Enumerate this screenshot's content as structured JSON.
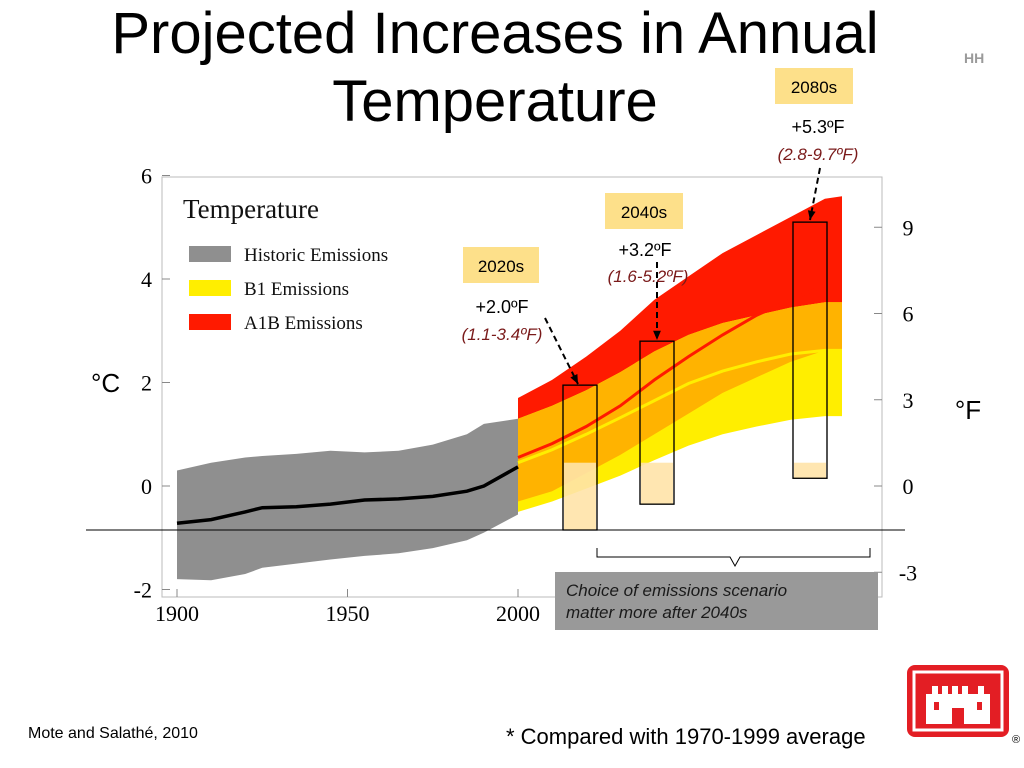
{
  "slide": {
    "title_line1": "Projected Increases in Annual",
    "title_line2": "Temperature",
    "corner_mark": "HH",
    "unit_left": "°C",
    "unit_right": "°F",
    "source": "Mote and Salathé, 2010",
    "footnote": "* Compared with 1970-1999 average",
    "note": [
      "Choice of emissions scenario",
      "matter more after 2040s"
    ],
    "registered": "®"
  },
  "chart_data": {
    "type": "area",
    "title": "Temperature",
    "xlabel": "",
    "ylabel": "°C",
    "y2label": "°F",
    "xlim": [
      1900,
      2100
    ],
    "ylim": [
      -2,
      6
    ],
    "x_ticks": [
      1900,
      1950,
      2000
    ],
    "y_ticks": [
      -2,
      0,
      2,
      4,
      6
    ],
    "y2_ticks": [
      -3,
      0,
      3,
      6,
      9
    ],
    "legend": {
      "placement": "top-left",
      "entries": [
        {
          "name": "Historic Emissions",
          "color": "#8f8f8f"
        },
        {
          "name": "B1 Emissions",
          "color": "#ffee00"
        },
        {
          "name": "A1B Emissions",
          "color": "#ff1a00"
        }
      ]
    },
    "series": [
      {
        "name": "Historic Emissions",
        "color": "#8f8f8f",
        "line_color": "#000000",
        "x": [
          1900,
          1910,
          1920,
          1925,
          1935,
          1945,
          1955,
          1965,
          1975,
          1985,
          1990,
          2000
        ],
        "mean": [
          -0.72,
          -0.65,
          -0.5,
          -0.42,
          -0.4,
          -0.35,
          -0.27,
          -0.25,
          -0.2,
          -0.1,
          0.0,
          0.37
        ],
        "low": [
          -1.8,
          -1.82,
          -1.7,
          -1.58,
          -1.5,
          -1.42,
          -1.35,
          -1.3,
          -1.2,
          -1.05,
          -0.9,
          -0.55
        ],
        "high": [
          0.3,
          0.45,
          0.55,
          0.58,
          0.62,
          0.68,
          0.65,
          0.68,
          0.8,
          1.0,
          1.2,
          1.3
        ]
      },
      {
        "name": "B1 Emissions",
        "color": "#ffee00",
        "line_color": "#ffee00",
        "x": [
          2000,
          2010,
          2020,
          2030,
          2040,
          2050,
          2060,
          2070,
          2080,
          2090,
          2095
        ],
        "mean": [
          0.45,
          0.7,
          1.0,
          1.32,
          1.65,
          1.98,
          2.22,
          2.4,
          2.55,
          2.62,
          2.62
        ],
        "low": [
          -0.5,
          -0.3,
          -0.05,
          0.2,
          0.5,
          0.78,
          1.0,
          1.15,
          1.28,
          1.35,
          1.35
        ],
        "high": [
          1.3,
          1.55,
          1.85,
          2.2,
          2.6,
          2.92,
          3.15,
          3.3,
          3.45,
          3.55,
          3.55
        ]
      },
      {
        "name": "A1B Emissions",
        "color": "#ff1a00",
        "line_color": "#ff1a00",
        "x": [
          2000,
          2010,
          2020,
          2030,
          2040,
          2050,
          2060,
          2070,
          2080,
          2090,
          2095
        ],
        "mean": [
          0.55,
          0.82,
          1.15,
          1.55,
          2.05,
          2.5,
          2.92,
          3.3,
          3.6,
          3.88,
          3.88
        ],
        "low": [
          -0.3,
          -0.1,
          0.25,
          0.6,
          1.0,
          1.4,
          1.8,
          2.1,
          2.4,
          2.62,
          2.62
        ],
        "high": [
          1.7,
          2.05,
          2.5,
          3.0,
          3.6,
          4.05,
          4.5,
          4.85,
          5.2,
          5.55,
          5.6
        ]
      }
    ],
    "callouts": [
      {
        "period": "2020s",
        "value": "+2.0ºF",
        "range": "(1.1-3.4ºF)",
        "x_center": 2020,
        "low": -0.85,
        "high": 1.95
      },
      {
        "period": "2040s",
        "value": "+3.2ºF",
        "range": "(1.6-5.2ºF)",
        "x_center": 2040,
        "low": -0.35,
        "high": 2.8
      },
      {
        "period": "2080s",
        "value": "+5.3ºF",
        "range": "(2.8-9.7ºF)",
        "x_center": 2085,
        "low": 0.15,
        "high": 5.1
      }
    ],
    "baseline_c": -0.85
  }
}
